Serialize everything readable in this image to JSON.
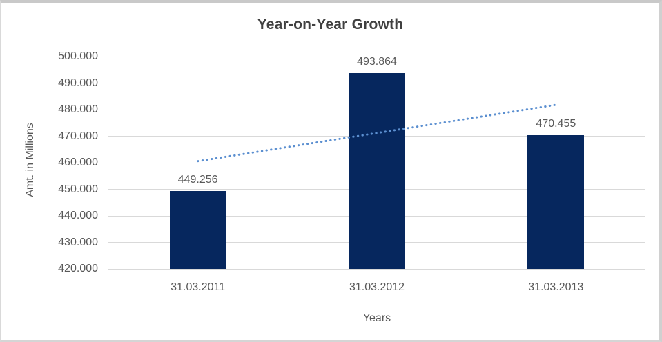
{
  "chart_data": {
    "type": "bar",
    "title": "Year-on-Year Growth",
    "categories": [
      "31.03.2011",
      "31.03.2012",
      "31.03.2013"
    ],
    "values": [
      449.256,
      493.864,
      470.455
    ],
    "data_labels": [
      "449.256",
      "493.864",
      "470.455"
    ],
    "xlabel": "Years",
    "ylabel": "Amt. in Millions",
    "y_axis": {
      "min": 420,
      "max": 500,
      "step": 10,
      "tick_labels": [
        "500.000",
        "490.000",
        "480.000",
        "470.000",
        "460.000",
        "450.000",
        "440.000",
        "430.000",
        "420.000"
      ]
    },
    "grid": true,
    "legend_position": "none",
    "colors": {
      "bar": "#06275e",
      "gridline": "#d9d9d9",
      "axis_text": "#595959",
      "title_text": "#404040",
      "trendline": "#5b8fd0"
    },
    "trendline": {
      "type": "linear",
      "style": "dotted",
      "start_value": 460.6,
      "end_value": 481.8
    }
  }
}
